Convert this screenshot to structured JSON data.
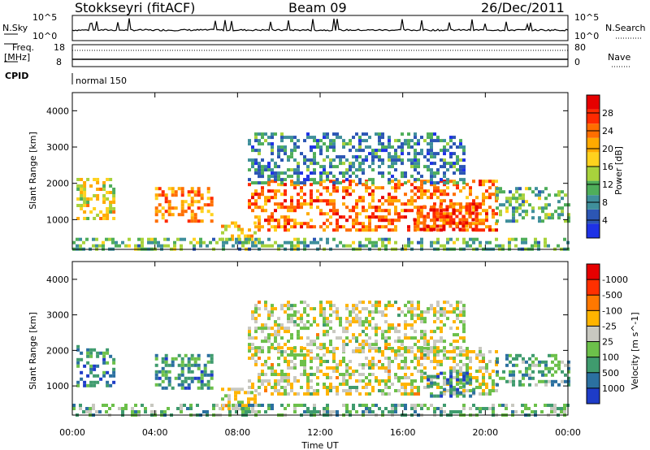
{
  "header": {
    "station": "Stokkseyri (fitACF)",
    "beam": "Beam 09",
    "date": "26/Dec/2011"
  },
  "strip": {
    "nsky_label": "N.Sky",
    "nsky_top": "10^5",
    "nsky_bottom": "10^0",
    "nsearch_label": "N.Search",
    "nsearch_top": "10^5",
    "nsearch_bottom": "10^0",
    "freq_label": "Freq.",
    "freq_unit": "[MHz]",
    "freq_top": "18",
    "freq_bottom": "8",
    "nave_label": "Nave",
    "nave_top": "80",
    "nave_bottom": "0",
    "cpid_label": "CPID",
    "cpid_value": "normal 150"
  },
  "x_axis": {
    "label": "Time UT",
    "ticks": [
      "00:00",
      "04:00",
      "08:00",
      "12:00",
      "16:00",
      "20:00",
      "00:00"
    ]
  },
  "chart_data": [
    {
      "type": "heatmap",
      "panel": "power",
      "ylabel": "Slant Range [km]",
      "ylim": [
        180,
        4500
      ],
      "yticks": [
        "1000",
        "2000",
        "3000",
        "4000"
      ],
      "xlim_hours": [
        0,
        24
      ],
      "colorbar": {
        "label": "Power [dB]",
        "ticks": [
          "4",
          "8",
          "12",
          "16",
          "20",
          "24",
          "28"
        ],
        "colors": [
          "#1e32e6",
          "#2c56b4",
          "#3f8f9b",
          "#4fae5a",
          "#a8d23c",
          "#ffd21e",
          "#ffaa00",
          "#ff6e00",
          "#ff2a00",
          "#e60000"
        ]
      },
      "regions": [
        {
          "t0": 0.2,
          "t1": 2.0,
          "r0": 1050,
          "r1": 2150,
          "level": 0.55
        },
        {
          "t0": 4.0,
          "t1": 6.8,
          "r0": 950,
          "r1": 1900,
          "level": 0.7
        },
        {
          "t0": 7.2,
          "t1": 8.8,
          "r0": 350,
          "r1": 950,
          "level": 0.6
        },
        {
          "t0": 8.5,
          "t1": 20.5,
          "r0": 750,
          "r1": 2100,
          "level": 0.75
        },
        {
          "t0": 16.5,
          "t1": 19.5,
          "r0": 750,
          "r1": 1400,
          "level": 0.85
        },
        {
          "t0": 8.5,
          "t1": 19.0,
          "r0": 2000,
          "r1": 3400,
          "level": 0.25
        },
        {
          "t0": 20.5,
          "t1": 24.0,
          "r0": 1000,
          "r1": 1900,
          "level": 0.35
        },
        {
          "t0": 0.0,
          "t1": 24.0,
          "r0": 180,
          "r1": 500,
          "level": 0.35
        }
      ]
    },
    {
      "type": "heatmap",
      "panel": "velocity",
      "ylabel": "Slant Range [km]",
      "ylim": [
        180,
        4500
      ],
      "yticks": [
        "1000",
        "2000",
        "3000",
        "4000"
      ],
      "xlim_hours": [
        0,
        24
      ],
      "colorbar": {
        "label": "Velocity [m s^-1]",
        "ticks": [
          "1000",
          "500",
          "100",
          "25",
          "-25",
          "-100",
          "-500",
          "-1000"
        ],
        "colors": [
          "#1e3cc8",
          "#2b70a0",
          "#3f9b6e",
          "#6cc04a",
          "#c8c8c0",
          "#ffb400",
          "#ff7800",
          "#ff3000",
          "#e60000"
        ]
      },
      "regions": [
        {
          "t0": 0.2,
          "t1": 2.0,
          "r0": 1050,
          "r1": 2150,
          "level": 0.2
        },
        {
          "t0": 4.0,
          "t1": 6.8,
          "r0": 950,
          "r1": 1900,
          "level": 0.25
        },
        {
          "t0": 8.5,
          "t1": 20.5,
          "r0": 750,
          "r1": 2100,
          "level": 0.5
        },
        {
          "t0": 8.5,
          "t1": 19.0,
          "r0": 2000,
          "r1": 3400,
          "level": 0.5
        },
        {
          "t0": 7.2,
          "t1": 8.8,
          "r0": 350,
          "r1": 950,
          "level": 0.5
        },
        {
          "t0": 17.0,
          "t1": 19.5,
          "r0": 750,
          "r1": 1400,
          "level": 0.2
        },
        {
          "t0": 20.5,
          "t1": 24.0,
          "r0": 1000,
          "r1": 1900,
          "level": 0.3
        },
        {
          "t0": 0.0,
          "t1": 24.0,
          "r0": 180,
          "r1": 500,
          "level": 0.35
        }
      ]
    }
  ]
}
